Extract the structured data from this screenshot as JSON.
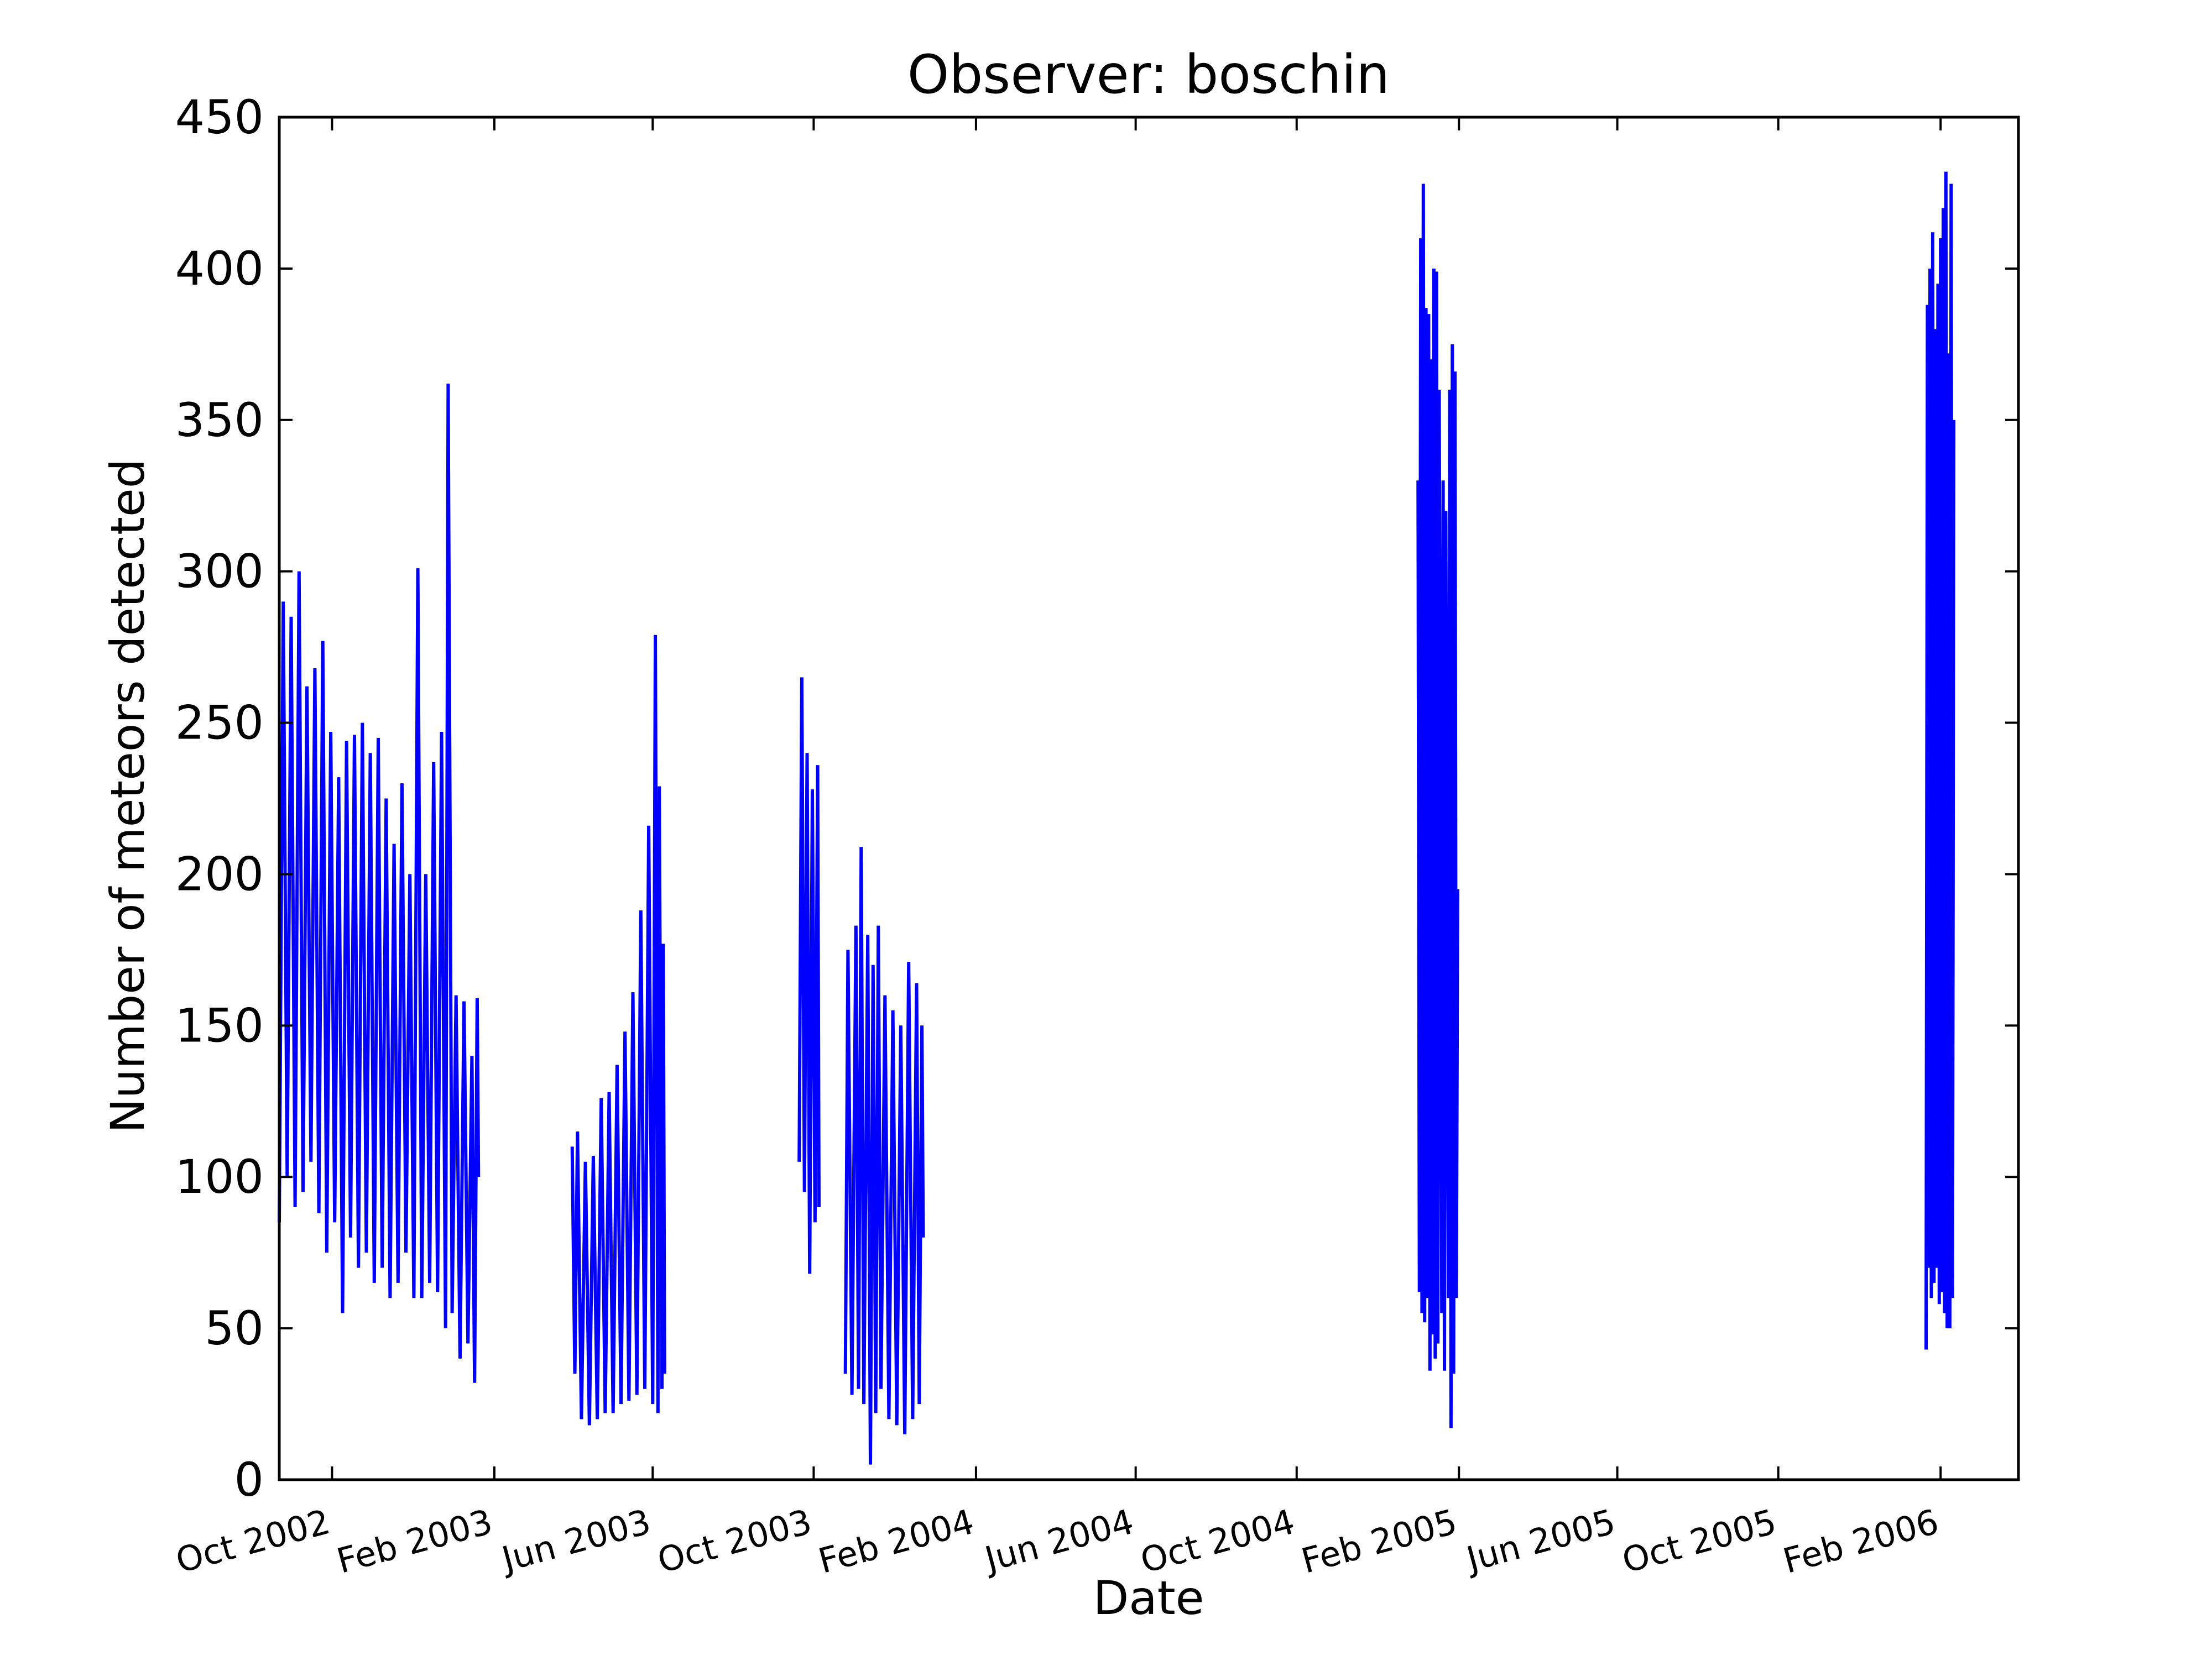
{
  "chart_data": {
    "type": "line",
    "title": "Observer: boschin",
    "xlabel": "Date",
    "ylabel": "Number of meteors detected",
    "xlim": [
      "2002-08-22",
      "2006-04-01"
    ],
    "ylim": [
      0,
      450
    ],
    "yticks": [
      0,
      50,
      100,
      150,
      200,
      250,
      300,
      350,
      400,
      450
    ],
    "xticks": [
      {
        "date": "2002-10-01",
        "label": "Oct 2002"
      },
      {
        "date": "2003-02-01",
        "label": "Feb 2003"
      },
      {
        "date": "2003-06-01",
        "label": "Jun 2003"
      },
      {
        "date": "2003-10-01",
        "label": "Oct 2003"
      },
      {
        "date": "2004-02-01",
        "label": "Feb 2004"
      },
      {
        "date": "2004-06-01",
        "label": "Jun 2004"
      },
      {
        "date": "2004-10-01",
        "label": "Oct 2004"
      },
      {
        "date": "2005-02-01",
        "label": "Feb 2005"
      },
      {
        "date": "2005-06-01",
        "label": "Jun 2005"
      },
      {
        "date": "2005-10-01",
        "label": "Oct 2005"
      },
      {
        "date": "2006-02-01",
        "label": "Feb 2006"
      }
    ],
    "grid": false,
    "colors": {
      "series": "#0000ff",
      "axes": "#000000",
      "background": "#ffffff"
    },
    "series": [
      {
        "segments": [
          [
            [
              "2002-08-22",
              85
            ],
            [
              "2002-08-25",
              290
            ],
            [
              "2002-08-28",
              100
            ],
            [
              "2002-08-31",
              285
            ],
            [
              "2002-09-03",
              90
            ],
            [
              "2002-09-06",
              300
            ],
            [
              "2002-09-09",
              95
            ],
            [
              "2002-09-12",
              262
            ],
            [
              "2002-09-15",
              105
            ],
            [
              "2002-09-18",
              268
            ],
            [
              "2002-09-21",
              88
            ],
            [
              "2002-09-24",
              277
            ],
            [
              "2002-09-27",
              75
            ],
            [
              "2002-09-30",
              247
            ],
            [
              "2002-10-03",
              85
            ],
            [
              "2002-10-06",
              232
            ],
            [
              "2002-10-09",
              55
            ],
            [
              "2002-10-12",
              244
            ],
            [
              "2002-10-15",
              80
            ],
            [
              "2002-10-18",
              246
            ],
            [
              "2002-10-21",
              70
            ],
            [
              "2002-10-24",
              250
            ],
            [
              "2002-10-27",
              75
            ],
            [
              "2002-10-30",
              240
            ],
            [
              "2002-11-02",
              65
            ],
            [
              "2002-11-05",
              245
            ],
            [
              "2002-11-08",
              70
            ],
            [
              "2002-11-11",
              225
            ],
            [
              "2002-11-14",
              60
            ],
            [
              "2002-11-17",
              210
            ],
            [
              "2002-11-20",
              65
            ],
            [
              "2002-11-23",
              230
            ],
            [
              "2002-11-26",
              75
            ],
            [
              "2002-11-29",
              200
            ],
            [
              "2002-12-02",
              60
            ],
            [
              "2002-12-05",
              301
            ],
            [
              "2002-12-08",
              60
            ],
            [
              "2002-12-11",
              200
            ],
            [
              "2002-12-14",
              65
            ],
            [
              "2002-12-17",
              237
            ],
            [
              "2002-12-20",
              62
            ],
            [
              "2002-12-23",
              247
            ],
            [
              "2002-12-26",
              50
            ],
            [
              "2002-12-28",
              362
            ],
            [
              "2002-12-31",
              55
            ],
            [
              "2003-01-03",
              160
            ],
            [
              "2003-01-06",
              40
            ],
            [
              "2003-01-09",
              158
            ],
            [
              "2003-01-12",
              45
            ],
            [
              "2003-01-15",
              140
            ],
            [
              "2003-01-17",
              32
            ],
            [
              "2003-01-19",
              159
            ],
            [
              "2003-01-20",
              100
            ]
          ],
          [
            [
              "2003-04-01",
              110
            ],
            [
              "2003-04-03",
              35
            ],
            [
              "2003-04-05",
              115
            ],
            [
              "2003-04-08",
              20
            ],
            [
              "2003-04-11",
              105
            ],
            [
              "2003-04-14",
              18
            ],
            [
              "2003-04-17",
              107
            ],
            [
              "2003-04-20",
              20
            ],
            [
              "2003-04-23",
              126
            ],
            [
              "2003-04-26",
              22
            ],
            [
              "2003-04-29",
              128
            ],
            [
              "2003-05-02",
              22
            ],
            [
              "2003-05-05",
              137
            ],
            [
              "2003-05-08",
              25
            ],
            [
              "2003-05-11",
              148
            ],
            [
              "2003-05-14",
              26
            ],
            [
              "2003-05-17",
              161
            ],
            [
              "2003-05-20",
              28
            ],
            [
              "2003-05-23",
              188
            ],
            [
              "2003-05-26",
              30
            ],
            [
              "2003-05-29",
              216
            ],
            [
              "2003-06-01",
              25
            ],
            [
              "2003-06-03",
              279
            ],
            [
              "2003-06-05",
              22
            ],
            [
              "2003-06-06",
              229
            ],
            [
              "2003-06-08",
              30
            ],
            [
              "2003-06-09",
              177
            ],
            [
              "2003-06-10",
              35
            ]
          ],
          [
            [
              "2003-09-20",
              105
            ],
            [
              "2003-09-22",
              265
            ],
            [
              "2003-09-24",
              95
            ],
            [
              "2003-09-26",
              240
            ],
            [
              "2003-09-28",
              68
            ],
            [
              "2003-09-30",
              228
            ],
            [
              "2003-10-02",
              85
            ],
            [
              "2003-10-04",
              236
            ],
            [
              "2003-10-05",
              90
            ]
          ],
          [
            [
              "2003-10-25",
              35
            ],
            [
              "2003-10-27",
              175
            ],
            [
              "2003-10-30",
              28
            ],
            [
              "2003-11-02",
              183
            ],
            [
              "2003-11-04",
              30
            ],
            [
              "2003-11-06",
              209
            ],
            [
              "2003-11-08",
              25
            ],
            [
              "2003-11-11",
              180
            ],
            [
              "2003-11-13",
              5
            ],
            [
              "2003-11-15",
              170
            ],
            [
              "2003-11-17",
              22
            ],
            [
              "2003-11-19",
              183
            ],
            [
              "2003-11-21",
              30
            ],
            [
              "2003-11-24",
              160
            ],
            [
              "2003-11-27",
              20
            ],
            [
              "2003-11-30",
              155
            ],
            [
              "2003-12-03",
              18
            ],
            [
              "2003-12-06",
              150
            ],
            [
              "2003-12-09",
              15
            ],
            [
              "2003-12-12",
              171
            ],
            [
              "2003-12-15",
              20
            ],
            [
              "2003-12-18",
              164
            ],
            [
              "2003-12-20",
              25
            ],
            [
              "2003-12-22",
              150
            ],
            [
              "2003-12-23",
              80
            ]
          ],
          [
            [
              "2005-01-01",
              330
            ],
            [
              "2005-01-02",
              62
            ],
            [
              "2005-01-03",
              410
            ],
            [
              "2005-01-04",
              55
            ],
            [
              "2005-01-05",
              428
            ],
            [
              "2005-01-06",
              52
            ],
            [
              "2005-01-07",
              387
            ],
            [
              "2005-01-08",
              60
            ],
            [
              "2005-01-09",
              385
            ],
            [
              "2005-01-10",
              36
            ],
            [
              "2005-01-11",
              370
            ],
            [
              "2005-01-12",
              48
            ],
            [
              "2005-01-13",
              400
            ],
            [
              "2005-01-14",
              40
            ],
            [
              "2005-01-15",
              399
            ],
            [
              "2005-01-16",
              45
            ],
            [
              "2005-01-17",
              360
            ],
            [
              "2005-01-19",
              55
            ],
            [
              "2005-01-20",
              330
            ],
            [
              "2005-01-21",
              36
            ],
            [
              "2005-01-22",
              320
            ],
            [
              "2005-01-24",
              60
            ],
            [
              "2005-01-25",
              360
            ],
            [
              "2005-01-26",
              17
            ],
            [
              "2005-01-27",
              375
            ],
            [
              "2005-01-28",
              35
            ],
            [
              "2005-01-29",
              366
            ],
            [
              "2005-01-30",
              60
            ],
            [
              "2005-01-31",
              195
            ]
          ],
          [
            [
              "2006-01-21",
              43
            ],
            [
              "2006-01-22",
              388
            ],
            [
              "2006-01-23",
              70
            ],
            [
              "2006-01-24",
              400
            ],
            [
              "2006-01-25",
              60
            ],
            [
              "2006-01-26",
              412
            ],
            [
              "2006-01-27",
              65
            ],
            [
              "2006-01-28",
              380
            ],
            [
              "2006-01-29",
              70
            ],
            [
              "2006-01-30",
              395
            ],
            [
              "2006-01-31",
              58
            ],
            [
              "2006-02-01",
              410
            ],
            [
              "2006-02-02",
              62
            ],
            [
              "2006-02-03",
              420
            ],
            [
              "2006-02-04",
              55
            ],
            [
              "2006-02-05",
              432
            ],
            [
              "2006-02-06",
              50
            ],
            [
              "2006-02-07",
              372
            ],
            [
              "2006-02-08",
              50
            ],
            [
              "2006-02-09",
              428
            ],
            [
              "2006-02-10",
              60
            ],
            [
              "2006-02-11",
              350
            ]
          ]
        ]
      }
    ]
  }
}
